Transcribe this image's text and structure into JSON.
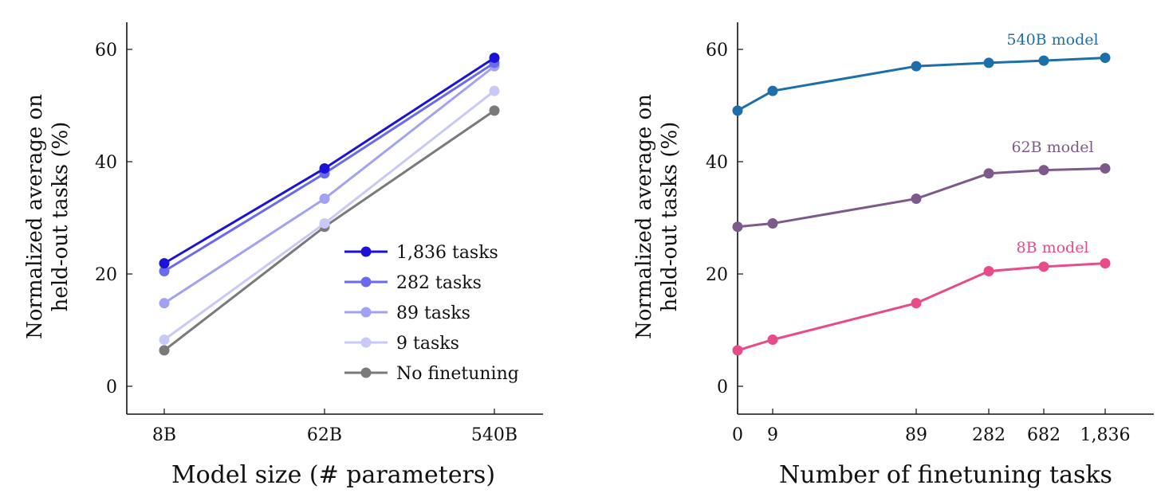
{
  "chart_data": [
    {
      "type": "line",
      "xlabel": "Model size (# parameters)",
      "ylabel_lines": [
        "Normalized average on",
        "held-out tasks (%)"
      ],
      "categories": [
        "8B",
        "62B",
        "540B"
      ],
      "yticks": [
        0,
        20,
        40,
        60
      ],
      "ylim": [
        -5,
        65
      ],
      "legend_position": "bottom-right",
      "series": [
        {
          "name": "1,836 tasks",
          "color": "#1a12d6",
          "values": [
            21.9,
            38.8,
            58.5
          ]
        },
        {
          "name": "282 tasks",
          "color": "#6a6aee",
          "values": [
            20.5,
            37.9,
            57.6
          ]
        },
        {
          "name": "89 tasks",
          "color": "#a2a2f2",
          "values": [
            14.8,
            33.4,
            57.0
          ]
        },
        {
          "name": "9 tasks",
          "color": "#c9c9f7",
          "values": [
            8.3,
            29.0,
            52.6
          ]
        },
        {
          "name": "No finetuning",
          "color": "#7a7a7a",
          "values": [
            6.4,
            28.4,
            49.1
          ]
        }
      ]
    },
    {
      "type": "line",
      "xlabel": "Number of finetuning tasks",
      "ylabel_lines": [
        "Normalized average on",
        "held-out tasks (%)"
      ],
      "categories": [
        "0",
        "9",
        "89",
        "282",
        "682",
        "1,836"
      ],
      "yticks": [
        0,
        20,
        40,
        60
      ],
      "ylim": [
        -5,
        65
      ],
      "series": [
        {
          "name": "540B model",
          "color": "#1c6fa8",
          "values": [
            49.1,
            52.6,
            57.0,
            57.6,
            58.0,
            58.5
          ]
        },
        {
          "name": "62B model",
          "color": "#7d5a8c",
          "values": [
            28.4,
            29.0,
            33.4,
            37.9,
            38.5,
            38.8
          ]
        },
        {
          "name": "8B model",
          "color": "#e84b8a",
          "values": [
            6.4,
            8.3,
            14.8,
            20.5,
            21.3,
            21.9
          ]
        }
      ]
    }
  ]
}
